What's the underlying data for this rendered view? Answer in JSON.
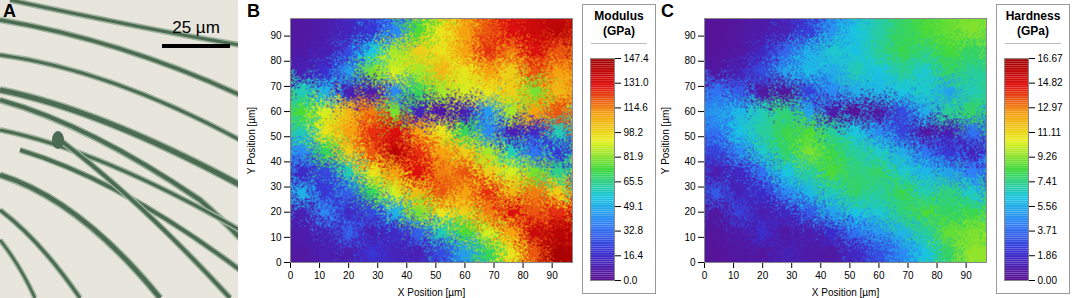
{
  "chart_data": [
    {
      "type": "image",
      "label": "A",
      "scale_bar": "25 µm"
    },
    {
      "type": "heatmap",
      "label": "B",
      "xlabel": "X Position [µm]",
      "ylabel": "Y Position [µm]",
      "xlim": [
        0,
        97
      ],
      "ylim": [
        0,
        97
      ],
      "xticks": [
        0,
        10,
        20,
        30,
        40,
        50,
        60,
        70,
        80,
        90
      ],
      "yticks": [
        0,
        10,
        20,
        30,
        40,
        50,
        60,
        70,
        80,
        90
      ],
      "x": [
        4,
        12,
        20,
        28,
        36,
        44,
        52,
        60,
        68,
        76,
        84,
        92
      ],
      "y": [
        92,
        84,
        76,
        68,
        60,
        52,
        44,
        36,
        28,
        20,
        12,
        4
      ],
      "values": [
        [
          5,
          8,
          12,
          20,
          40,
          75,
          95,
          110,
          120,
          130,
          135,
          140
        ],
        [
          6,
          10,
          25,
          55,
          85,
          100,
          95,
          110,
          125,
          115,
          130,
          120
        ],
        [
          10,
          18,
          45,
          80,
          90,
          85,
          105,
          95,
          110,
          100,
          120,
          110
        ],
        [
          60,
          50,
          10,
          8,
          40,
          70,
          85,
          90,
          95,
          100,
          80,
          105
        ],
        [
          75,
          90,
          105,
          115,
          80,
          12,
          6,
          10,
          45,
          85,
          110,
          120
        ],
        [
          60,
          95,
          110,
          125,
          130,
          110,
          95,
          70,
          40,
          10,
          15,
          60
        ],
        [
          40,
          70,
          100,
          120,
          140,
          125,
          110,
          100,
          85,
          60,
          35,
          20
        ],
        [
          15,
          25,
          60,
          95,
          110,
          130,
          115,
          120,
          100,
          90,
          80,
          65
        ],
        [
          50,
          20,
          30,
          70,
          90,
          105,
          120,
          110,
          125,
          105,
          115,
          100
        ],
        [
          10,
          40,
          15,
          25,
          50,
          80,
          95,
          100,
          115,
          130,
          120,
          125
        ],
        [
          8,
          12,
          30,
          10,
          15,
          30,
          60,
          75,
          90,
          110,
          135,
          140
        ],
        [
          5,
          10,
          8,
          20,
          12,
          10,
          25,
          45,
          70,
          95,
          120,
          145
        ]
      ],
      "colorbar": {
        "title": "Modulus (GPa)",
        "range": [
          0,
          147.4
        ],
        "ticks": [
          {
            "value": 0,
            "label": "0.0"
          },
          16.4,
          32.8,
          49.1,
          65.5,
          81.9,
          98.2,
          114.6,
          {
            "value": 131,
            "label": "131.0"
          },
          147.4
        ]
      }
    },
    {
      "type": "heatmap",
      "label": "C",
      "xlabel": "X Position [µm]",
      "ylabel": "Y Position [µm]",
      "xlim": [
        0,
        97
      ],
      "ylim": [
        0,
        97
      ],
      "xticks": [
        0,
        10,
        20,
        30,
        40,
        50,
        60,
        70,
        80,
        90
      ],
      "yticks": [
        0,
        10,
        20,
        30,
        40,
        50,
        60,
        70,
        80,
        90
      ],
      "x": [
        4,
        12,
        20,
        28,
        36,
        44,
        52,
        60,
        68,
        76,
        84,
        92
      ],
      "y": [
        92,
        84,
        76,
        68,
        60,
        52,
        44,
        36,
        28,
        20,
        12,
        4
      ],
      "values": [
        [
          0.3,
          0.5,
          0.8,
          1.2,
          2.5,
          4.8,
          6.2,
          7.0,
          7.8,
          8.5,
          8.8,
          9.2
        ],
        [
          0.4,
          0.6,
          1.6,
          3.5,
          5.5,
          6.5,
          6.1,
          7.2,
          8.1,
          7.5,
          8.4,
          7.8
        ],
        [
          0.6,
          1.2,
          2.9,
          5.2,
          5.9,
          5.5,
          6.8,
          6.2,
          7.2,
          6.5,
          7.8,
          7.1
        ],
        [
          3.9,
          3.2,
          0.6,
          0.5,
          2.6,
          4.5,
          5.5,
          5.8,
          6.2,
          6.5,
          5.2,
          6.8
        ],
        [
          4.9,
          5.8,
          6.8,
          7.5,
          5.2,
          0.8,
          0.4,
          0.6,
          2.9,
          5.5,
          7.2,
          7.8
        ],
        [
          3.9,
          6.2,
          7.1,
          8.1,
          8.5,
          7.1,
          6.2,
          4.5,
          2.6,
          0.6,
          1.0,
          3.9
        ],
        [
          2.6,
          4.5,
          6.5,
          7.8,
          9.1,
          8.1,
          7.1,
          6.5,
          5.5,
          3.9,
          2.3,
          1.3
        ],
        [
          1.0,
          1.6,
          3.9,
          6.2,
          7.1,
          8.5,
          7.5,
          7.8,
          6.5,
          5.8,
          5.2,
          4.2
        ],
        [
          3.2,
          1.3,
          1.9,
          4.5,
          5.8,
          6.8,
          7.8,
          7.1,
          8.1,
          6.8,
          7.5,
          6.5
        ],
        [
          0.6,
          2.6,
          1.0,
          1.6,
          3.2,
          5.2,
          6.2,
          6.5,
          7.5,
          8.5,
          7.8,
          8.1
        ],
        [
          0.5,
          0.8,
          1.9,
          0.6,
          1.0,
          1.9,
          3.9,
          4.9,
          5.8,
          7.1,
          8.8,
          9.1
        ],
        [
          0.3,
          0.6,
          0.5,
          1.3,
          0.8,
          0.6,
          1.6,
          2.9,
          4.5,
          6.2,
          7.8,
          9.4
        ]
      ],
      "colorbar": {
        "title": "Hardness (GPa)",
        "range": [
          0,
          16.67
        ],
        "ticks": [
          {
            "value": 0,
            "label": "0.00"
          },
          1.86,
          3.71,
          5.56,
          7.41,
          9.26,
          11.11,
          12.97,
          14.82,
          16.67
        ]
      }
    }
  ]
}
